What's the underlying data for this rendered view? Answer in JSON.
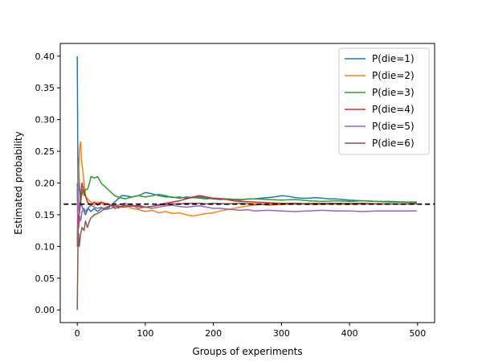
{
  "chart_data": {
    "type": "line",
    "title": "",
    "xlabel": "Groups of experiments",
    "ylabel": "Estimated probability",
    "xlim": [
      -25,
      525
    ],
    "ylim": [
      -0.02,
      0.42
    ],
    "xticks": [
      0,
      100,
      200,
      300,
      400,
      500
    ],
    "yticks": [
      0.0,
      0.05,
      0.1,
      0.15,
      0.2,
      0.25,
      0.3,
      0.35,
      0.4
    ],
    "xtick_labels": [
      "0",
      "100",
      "200",
      "300",
      "400",
      "500"
    ],
    "ytick_labels": [
      "0.00",
      "0.05",
      "0.10",
      "0.15",
      "0.20",
      "0.25",
      "0.30",
      "0.35",
      "0.40"
    ],
    "grid": false,
    "legend_position": "top-right",
    "reference_line": {
      "y": 0.1667,
      "style": "dashed",
      "color": "#000000"
    },
    "series": [
      {
        "name": "P(die=1)",
        "color": "#1f77b4",
        "points": [
          [
            0,
            0.4
          ],
          [
            1,
            0.2
          ],
          [
            2,
            0.24
          ],
          [
            3,
            0.2
          ],
          [
            5,
            0.17
          ],
          [
            8,
            0.16
          ],
          [
            12,
            0.15
          ],
          [
            16,
            0.16
          ],
          [
            20,
            0.155
          ],
          [
            25,
            0.16
          ],
          [
            30,
            0.155
          ],
          [
            35,
            0.16
          ],
          [
            40,
            0.16
          ],
          [
            45,
            0.16
          ],
          [
            50,
            0.165
          ],
          [
            55,
            0.17
          ],
          [
            60,
            0.175
          ],
          [
            65,
            0.18
          ],
          [
            70,
            0.18
          ],
          [
            80,
            0.178
          ],
          [
            90,
            0.18
          ],
          [
            100,
            0.185
          ],
          [
            110,
            0.183
          ],
          [
            120,
            0.18
          ],
          [
            130,
            0.178
          ],
          [
            140,
            0.178
          ],
          [
            150,
            0.176
          ],
          [
            160,
            0.178
          ],
          [
            170,
            0.177
          ],
          [
            180,
            0.178
          ],
          [
            190,
            0.176
          ],
          [
            200,
            0.175
          ],
          [
            210,
            0.174
          ],
          [
            220,
            0.175
          ],
          [
            230,
            0.174
          ],
          [
            240,
            0.173
          ],
          [
            250,
            0.175
          ],
          [
            260,
            0.175
          ],
          [
            270,
            0.176
          ],
          [
            280,
            0.177
          ],
          [
            290,
            0.178
          ],
          [
            300,
            0.18
          ],
          [
            310,
            0.179
          ],
          [
            320,
            0.177
          ],
          [
            330,
            0.176
          ],
          [
            340,
            0.176
          ],
          [
            350,
            0.177
          ],
          [
            360,
            0.176
          ],
          [
            370,
            0.175
          ],
          [
            380,
            0.175
          ],
          [
            390,
            0.174
          ],
          [
            400,
            0.173
          ],
          [
            420,
            0.172
          ],
          [
            440,
            0.171
          ],
          [
            460,
            0.171
          ],
          [
            480,
            0.17
          ],
          [
            499,
            0.169
          ]
        ]
      },
      {
        "name": "P(die=2)",
        "color": "#ff7f0e",
        "points": [
          [
            0,
            0.2
          ],
          [
            1,
            0.15
          ],
          [
            2,
            0.2
          ],
          [
            3,
            0.25
          ],
          [
            4,
            0.26
          ],
          [
            5,
            0.265
          ],
          [
            6,
            0.24
          ],
          [
            8,
            0.22
          ],
          [
            10,
            0.2
          ],
          [
            12,
            0.18
          ],
          [
            15,
            0.175
          ],
          [
            20,
            0.17
          ],
          [
            25,
            0.165
          ],
          [
            30,
            0.17
          ],
          [
            35,
            0.168
          ],
          [
            40,
            0.165
          ],
          [
            45,
            0.168
          ],
          [
            50,
            0.165
          ],
          [
            55,
            0.167
          ],
          [
            60,
            0.16
          ],
          [
            70,
            0.165
          ],
          [
            80,
            0.16
          ],
          [
            90,
            0.158
          ],
          [
            100,
            0.155
          ],
          [
            110,
            0.157
          ],
          [
            120,
            0.153
          ],
          [
            130,
            0.155
          ],
          [
            140,
            0.152
          ],
          [
            150,
            0.153
          ],
          [
            160,
            0.15
          ],
          [
            170,
            0.148
          ],
          [
            180,
            0.15
          ],
          [
            190,
            0.152
          ],
          [
            200,
            0.153
          ],
          [
            210,
            0.156
          ],
          [
            220,
            0.158
          ],
          [
            230,
            0.16
          ],
          [
            240,
            0.162
          ],
          [
            250,
            0.164
          ],
          [
            260,
            0.165
          ],
          [
            270,
            0.166
          ],
          [
            280,
            0.165
          ],
          [
            300,
            0.166
          ],
          [
            320,
            0.167
          ],
          [
            350,
            0.166
          ],
          [
            380,
            0.167
          ],
          [
            400,
            0.166
          ],
          [
            420,
            0.167
          ],
          [
            450,
            0.167
          ],
          [
            480,
            0.167
          ],
          [
            499,
            0.167
          ]
        ]
      },
      {
        "name": "P(die=3)",
        "color": "#2ca02c",
        "points": [
          [
            0,
            0.2
          ],
          [
            1,
            0.1
          ],
          [
            2,
            0.15
          ],
          [
            3,
            0.15
          ],
          [
            5,
            0.17
          ],
          [
            8,
            0.19
          ],
          [
            10,
            0.18
          ],
          [
            12,
            0.19
          ],
          [
            15,
            0.19
          ],
          [
            18,
            0.2
          ],
          [
            20,
            0.21
          ],
          [
            25,
            0.208
          ],
          [
            30,
            0.21
          ],
          [
            35,
            0.2
          ],
          [
            40,
            0.195
          ],
          [
            45,
            0.19
          ],
          [
            50,
            0.185
          ],
          [
            55,
            0.18
          ],
          [
            60,
            0.178
          ],
          [
            70,
            0.175
          ],
          [
            80,
            0.178
          ],
          [
            90,
            0.18
          ],
          [
            100,
            0.178
          ],
          [
            110,
            0.18
          ],
          [
            120,
            0.182
          ],
          [
            130,
            0.18
          ],
          [
            140,
            0.177
          ],
          [
            150,
            0.178
          ],
          [
            160,
            0.176
          ],
          [
            170,
            0.177
          ],
          [
            180,
            0.176
          ],
          [
            190,
            0.175
          ],
          [
            200,
            0.176
          ],
          [
            220,
            0.175
          ],
          [
            240,
            0.174
          ],
          [
            260,
            0.175
          ],
          [
            280,
            0.174
          ],
          [
            300,
            0.173
          ],
          [
            320,
            0.174
          ],
          [
            340,
            0.172
          ],
          [
            360,
            0.171
          ],
          [
            380,
            0.172
          ],
          [
            400,
            0.171
          ],
          [
            420,
            0.172
          ],
          [
            440,
            0.171
          ],
          [
            460,
            0.17
          ],
          [
            480,
            0.17
          ],
          [
            499,
            0.17
          ]
        ]
      },
      {
        "name": "P(die=4)",
        "color": "#d62728",
        "points": [
          [
            0,
            0.1
          ],
          [
            1,
            0.15
          ],
          [
            2,
            0.13
          ],
          [
            3,
            0.15
          ],
          [
            5,
            0.18
          ],
          [
            7,
            0.2
          ],
          [
            9,
            0.19
          ],
          [
            12,
            0.18
          ],
          [
            15,
            0.17
          ],
          [
            20,
            0.165
          ],
          [
            25,
            0.17
          ],
          [
            30,
            0.165
          ],
          [
            35,
            0.17
          ],
          [
            40,
            0.168
          ],
          [
            50,
            0.165
          ],
          [
            60,
            0.163
          ],
          [
            70,
            0.162
          ],
          [
            80,
            0.165
          ],
          [
            90,
            0.163
          ],
          [
            100,
            0.162
          ],
          [
            110,
            0.163
          ],
          [
            120,
            0.166
          ],
          [
            130,
            0.168
          ],
          [
            140,
            0.17
          ],
          [
            150,
            0.172
          ],
          [
            160,
            0.175
          ],
          [
            170,
            0.178
          ],
          [
            180,
            0.18
          ],
          [
            190,
            0.178
          ],
          [
            200,
            0.176
          ],
          [
            210,
            0.175
          ],
          [
            220,
            0.174
          ],
          [
            230,
            0.172
          ],
          [
            240,
            0.171
          ],
          [
            260,
            0.17
          ],
          [
            280,
            0.169
          ],
          [
            300,
            0.168
          ],
          [
            320,
            0.168
          ],
          [
            350,
            0.167
          ],
          [
            380,
            0.167
          ],
          [
            400,
            0.168
          ],
          [
            420,
            0.168
          ],
          [
            450,
            0.167
          ],
          [
            480,
            0.167
          ],
          [
            499,
            0.168
          ]
        ]
      },
      {
        "name": "P(die=5)",
        "color": "#9467bd",
        "points": [
          [
            0,
            0.1
          ],
          [
            1,
            0.2
          ],
          [
            2,
            0.17
          ],
          [
            3,
            0.15
          ],
          [
            5,
            0.14
          ],
          [
            7,
            0.155
          ],
          [
            10,
            0.16
          ],
          [
            12,
            0.155
          ],
          [
            15,
            0.16
          ],
          [
            20,
            0.165
          ],
          [
            25,
            0.162
          ],
          [
            30,
            0.16
          ],
          [
            35,
            0.162
          ],
          [
            40,
            0.158
          ],
          [
            50,
            0.16
          ],
          [
            60,
            0.165
          ],
          [
            70,
            0.168
          ],
          [
            80,
            0.165
          ],
          [
            90,
            0.16
          ],
          [
            100,
            0.162
          ],
          [
            110,
            0.16
          ],
          [
            120,
            0.162
          ],
          [
            130,
            0.164
          ],
          [
            140,
            0.165
          ],
          [
            150,
            0.163
          ],
          [
            160,
            0.162
          ],
          [
            170,
            0.163
          ],
          [
            180,
            0.164
          ],
          [
            190,
            0.162
          ],
          [
            200,
            0.16
          ],
          [
            210,
            0.16
          ],
          [
            220,
            0.159
          ],
          [
            230,
            0.158
          ],
          [
            240,
            0.157
          ],
          [
            250,
            0.158
          ],
          [
            260,
            0.156
          ],
          [
            280,
            0.157
          ],
          [
            300,
            0.156
          ],
          [
            320,
            0.155
          ],
          [
            340,
            0.156
          ],
          [
            360,
            0.157
          ],
          [
            380,
            0.156
          ],
          [
            400,
            0.156
          ],
          [
            420,
            0.155
          ],
          [
            440,
            0.156
          ],
          [
            460,
            0.156
          ],
          [
            480,
            0.156
          ],
          [
            499,
            0.156
          ]
        ]
      },
      {
        "name": "P(die=6)",
        "color": "#8c564b",
        "points": [
          [
            0,
            0.0
          ],
          [
            1,
            0.1
          ],
          [
            2,
            0.12
          ],
          [
            3,
            0.1
          ],
          [
            5,
            0.12
          ],
          [
            7,
            0.13
          ],
          [
            10,
            0.125
          ],
          [
            12,
            0.14
          ],
          [
            15,
            0.13
          ],
          [
            18,
            0.14
          ],
          [
            20,
            0.145
          ],
          [
            25,
            0.15
          ],
          [
            30,
            0.152
          ],
          [
            35,
            0.155
          ],
          [
            40,
            0.16
          ],
          [
            45,
            0.163
          ],
          [
            50,
            0.165
          ],
          [
            55,
            0.16
          ],
          [
            60,
            0.162
          ],
          [
            70,
            0.165
          ],
          [
            80,
            0.163
          ],
          [
            90,
            0.165
          ],
          [
            100,
            0.162
          ],
          [
            110,
            0.163
          ],
          [
            120,
            0.165
          ],
          [
            130,
            0.166
          ],
          [
            140,
            0.167
          ],
          [
            150,
            0.167
          ],
          [
            160,
            0.168
          ],
          [
            170,
            0.168
          ],
          [
            180,
            0.168
          ],
          [
            190,
            0.167
          ],
          [
            200,
            0.168
          ],
          [
            220,
            0.167
          ],
          [
            240,
            0.168
          ],
          [
            260,
            0.167
          ],
          [
            280,
            0.166
          ],
          [
            300,
            0.167
          ],
          [
            320,
            0.167
          ],
          [
            350,
            0.168
          ],
          [
            380,
            0.168
          ],
          [
            400,
            0.168
          ],
          [
            420,
            0.167
          ],
          [
            450,
            0.167
          ],
          [
            480,
            0.167
          ],
          [
            499,
            0.167
          ]
        ]
      }
    ]
  }
}
